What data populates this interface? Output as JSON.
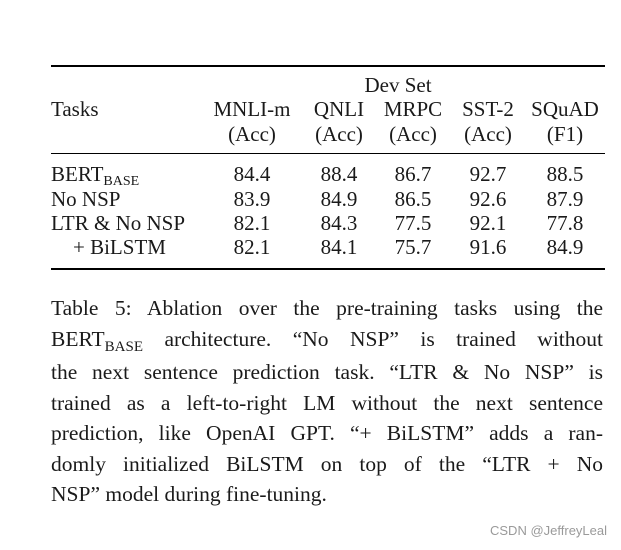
{
  "table": {
    "group_header": "Dev Set",
    "tasks_header": "Tasks",
    "columns": [
      {
        "name": "MNLI-m",
        "metric": "(Acc)"
      },
      {
        "name": "QNLI",
        "metric": "(Acc)"
      },
      {
        "name": "MRPC",
        "metric": "(Acc)"
      },
      {
        "name": "SST-2",
        "metric": "(Acc)"
      },
      {
        "name": "SQuAD",
        "metric": "(F1)"
      }
    ],
    "rows": [
      {
        "label": "BERT",
        "sub": "BASE",
        "values": [
          "84.4",
          "88.4",
          "86.7",
          "92.7",
          "88.5"
        ]
      },
      {
        "label": "No NSP",
        "values": [
          "83.9",
          "84.9",
          "86.5",
          "92.6",
          "87.9"
        ]
      },
      {
        "label": "LTR & No NSP",
        "values": [
          "82.1",
          "84.3",
          "77.5",
          "92.1",
          "77.8"
        ]
      },
      {
        "label": "+ BiLSTM",
        "values": [
          "82.1",
          "84.1",
          "75.7",
          "91.6",
          "84.9"
        ]
      }
    ]
  },
  "caption": {
    "l1": "Table 5:  Ablation over the pre-training tasks using the",
    "l2_pre": "BERT",
    "l2_sub": "BASE",
    "l2_post": " architecture.  “No NSP” is trained without",
    "l3": "the next sentence prediction task.  “LTR & No NSP” is",
    "l4": "trained as a left-to-right LM without the next sentence",
    "l5": "prediction, like OpenAI GPT. “+ BiLSTM” adds a ran-",
    "l6": "domly initialized BiLSTM on top of the “LTR + No",
    "l7": "NSP” model during fine-tuning."
  },
  "watermark": "CSDN @JeffreyLeal"
}
